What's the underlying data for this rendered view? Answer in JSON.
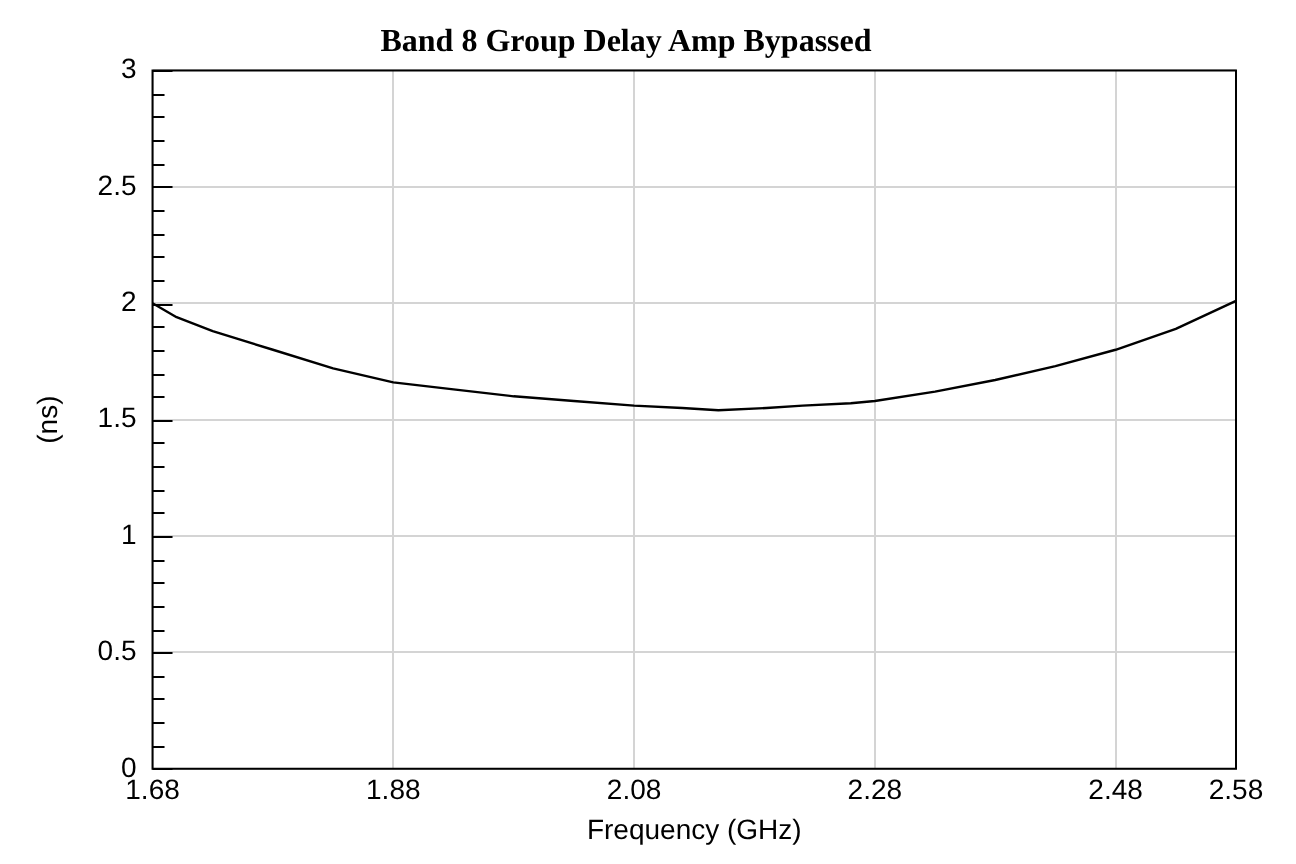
{
  "chart_data": {
    "type": "line",
    "title": "Band 8 Group Delay Amp Bypassed",
    "xlabel": "Frequency (GHz)",
    "ylabel": "(ns)",
    "x": [
      1.68,
      1.7,
      1.73,
      1.78,
      1.83,
      1.88,
      1.93,
      1.98,
      2.03,
      2.08,
      2.12,
      2.15,
      2.19,
      2.22,
      2.26,
      2.28,
      2.33,
      2.38,
      2.43,
      2.48,
      2.53,
      2.58
    ],
    "series": [
      {
        "color": "#000000",
        "values": [
          2.0,
          1.94,
          1.88,
          1.8,
          1.72,
          1.66,
          1.63,
          1.6,
          1.58,
          1.56,
          1.55,
          1.54,
          1.55,
          1.56,
          1.57,
          1.58,
          1.62,
          1.67,
          1.73,
          1.8,
          1.89,
          2.01
        ]
      }
    ],
    "xlim": [
      1.68,
      2.58
    ],
    "xticks": [
      1.68,
      1.88,
      2.08,
      2.28,
      2.48,
      2.58
    ],
    "ylim": [
      0,
      3
    ],
    "yticks": [
      0,
      {
        "value": 0.1,
        "label": null
      },
      {
        "value": 0.2,
        "label": null
      },
      {
        "value": 0.3,
        "label": null
      },
      {
        "value": 0.4,
        "label": null
      },
      0.5,
      {
        "value": 0.6,
        "label": null
      },
      {
        "value": 0.7,
        "label": null
      },
      {
        "value": 0.8,
        "label": null
      },
      {
        "value": 0.9,
        "label": null
      },
      1,
      {
        "value": 1.1,
        "label": null
      },
      {
        "value": 1.2,
        "label": null
      },
      {
        "value": 1.3,
        "label": null
      },
      {
        "value": 1.4,
        "label": null
      },
      1.5,
      {
        "value": 1.6,
        "label": null
      },
      {
        "value": 1.7,
        "label": null
      },
      {
        "value": 1.8,
        "label": null
      },
      {
        "value": 1.9,
        "label": null
      },
      2,
      {
        "value": 2.1,
        "label": null
      },
      {
        "value": 2.2,
        "label": null
      },
      {
        "value": 2.3,
        "label": null
      },
      {
        "value": 2.4,
        "label": null
      },
      2.5,
      {
        "value": 2.6,
        "label": null
      },
      {
        "value": 2.7,
        "label": null
      },
      {
        "value": 2.8,
        "label": null
      },
      {
        "value": 2.9,
        "label": null
      },
      3
    ],
    "grid": true,
    "legend": false,
    "marker": "none",
    "line_style": "solid"
  }
}
